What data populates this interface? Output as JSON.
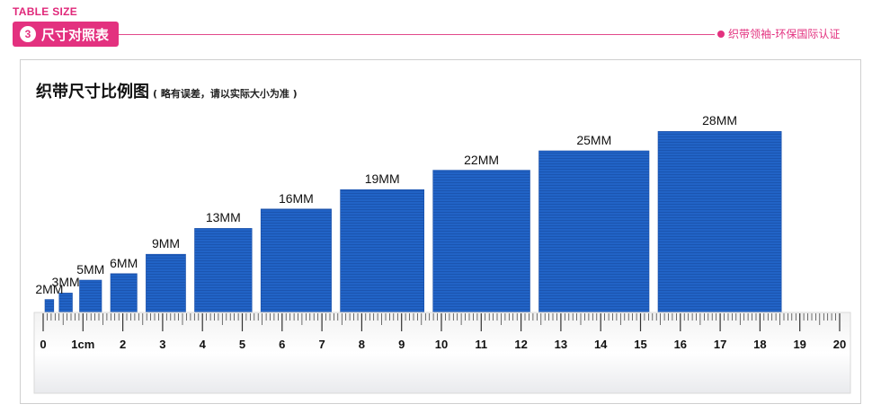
{
  "header": {
    "eyebrow": "TABLE SIZE",
    "badge_number": "3",
    "title": "尺寸对照表",
    "certification": "织带领袖-环保国际认证"
  },
  "chart_title": {
    "main": "织带尺寸比例图",
    "note": "( 略有误差，请以实际大小为准 )"
  },
  "colors": {
    "accent": "#e3317f",
    "ribbon": "#1f5fc0",
    "ribbon_dark": "#1a4fa8"
  },
  "chart_data": {
    "type": "bar",
    "categories": [
      "2MM",
      "3MM",
      "5MM",
      "6MM",
      "9MM",
      "13MM",
      "16MM",
      "19MM",
      "22MM",
      "25MM",
      "28MM"
    ],
    "values": [
      2,
      3,
      5,
      6,
      9,
      13,
      16,
      19,
      22,
      25,
      28
    ],
    "unit": "MM",
    "ruler": {
      "unit_label": "1cm",
      "tick_labels": [
        "0",
        "1cm",
        "2",
        "3",
        "4",
        "5",
        "6",
        "7",
        "8",
        "9",
        "10",
        "11",
        "12",
        "13",
        "14",
        "15",
        "16",
        "17",
        "18",
        "19",
        "20"
      ],
      "range_cm": [
        0,
        20
      ]
    }
  }
}
